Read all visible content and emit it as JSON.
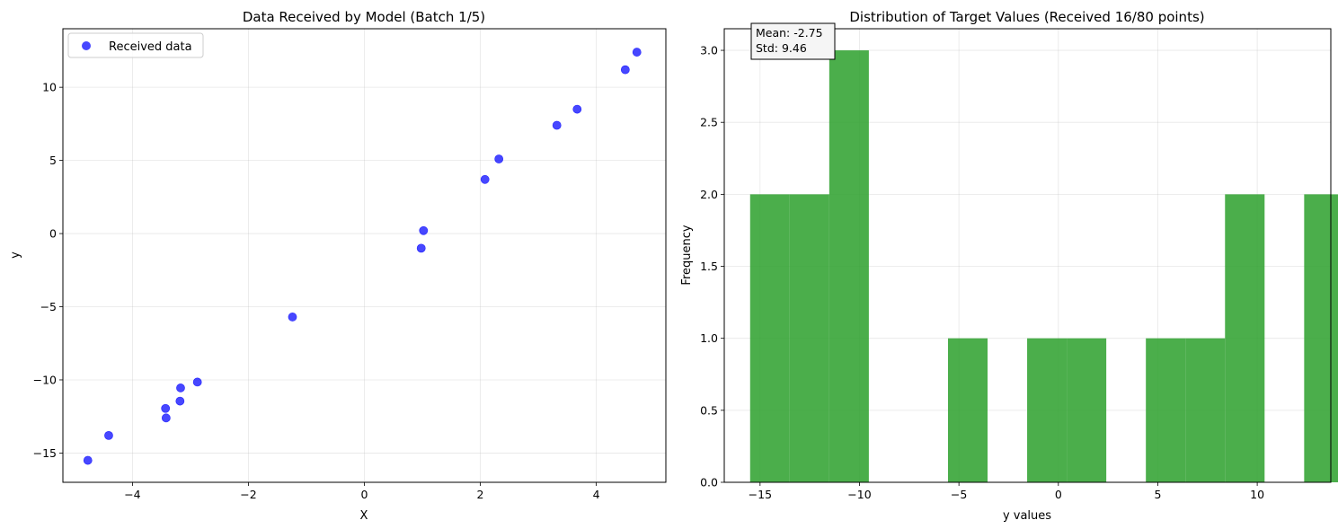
{
  "chart_data": [
    {
      "type": "scatter",
      "title": "Data Received by Model (Batch 1/5)",
      "xlabel": "X",
      "ylabel": "y",
      "xlim": [
        -5.2,
        5.2
      ],
      "ylim": [
        -17,
        14
      ],
      "xticks": [
        -4,
        -2,
        0,
        2,
        4
      ],
      "yticks": [
        -15,
        -10,
        -5,
        0,
        5,
        10
      ],
      "grid": true,
      "legend_position": "top-left",
      "series": [
        {
          "name": "Received data",
          "color": "#0000ff",
          "points": [
            {
              "x": -4.77,
              "y": -15.5
            },
            {
              "x": -4.41,
              "y": -13.8
            },
            {
              "x": -3.43,
              "y": -11.95
            },
            {
              "x": -3.42,
              "y": -12.6
            },
            {
              "x": -3.17,
              "y": -10.55
            },
            {
              "x": -3.18,
              "y": -11.45
            },
            {
              "x": -2.88,
              "y": -10.15
            },
            {
              "x": -1.24,
              "y": -5.7
            },
            {
              "x": 0.98,
              "y": -1.0
            },
            {
              "x": 1.02,
              "y": 0.2
            },
            {
              "x": 2.08,
              "y": 3.7
            },
            {
              "x": 2.32,
              "y": 5.1
            },
            {
              "x": 3.32,
              "y": 7.4
            },
            {
              "x": 3.67,
              "y": 8.5
            },
            {
              "x": 4.5,
              "y": 11.2
            },
            {
              "x": 4.7,
              "y": 12.4
            }
          ]
        }
      ]
    },
    {
      "type": "bar",
      "title": "Distribution of Target Values (Received 16/80 points)",
      "xlabel": "y values",
      "ylabel": "Frequency",
      "xlim": [
        -16.8,
        13.7
      ],
      "ylim": [
        0,
        3.15
      ],
      "xticks": [
        -15,
        -10,
        -5,
        0,
        5,
        10
      ],
      "yticks": [
        0.0,
        0.5,
        1.0,
        1.5,
        2.0,
        2.5,
        3.0
      ],
      "grid": true,
      "color": "#2ca02c",
      "bin_start": -15.5,
      "bin_width": 1.99,
      "counts": [
        2,
        2,
        3,
        0,
        0,
        1,
        0,
        1,
        1,
        0,
        1,
        1,
        2,
        0,
        2
      ],
      "annotation": {
        "mean_label": "Mean: -2.75",
        "std_label": "Std: 9.46"
      }
    }
  ]
}
